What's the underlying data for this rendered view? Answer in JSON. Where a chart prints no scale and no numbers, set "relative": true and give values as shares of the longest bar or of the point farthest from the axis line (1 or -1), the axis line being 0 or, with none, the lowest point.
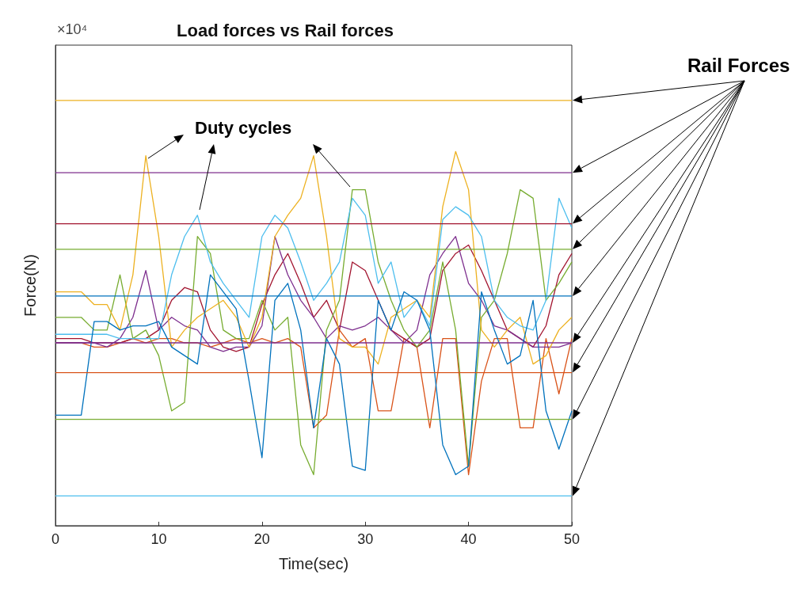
{
  "chart_data": {
    "type": "line",
    "title": "Load forces vs Rail forces",
    "xlabel": "Time(sec)",
    "ylabel": "Force(N)",
    "relative": true,
    "xlim": [
      0,
      50
    ],
    "xticks": [
      0,
      10,
      20,
      30,
      40,
      50
    ],
    "grid": false,
    "marker": "none",
    "annotations": [
      "×10⁴",
      "Rail Forces",
      "Duty cycles"
    ],
    "x": [
      0,
      1.25,
      2.5,
      3.75,
      5,
      6.25,
      7.5,
      8.75,
      10,
      11.25,
      12.5,
      13.75,
      15,
      16.25,
      17.5,
      18.75,
      20,
      21.25,
      22.5,
      23.75,
      25,
      26.25,
      27.5,
      28.75,
      30,
      31.25,
      32.5,
      33.75,
      35,
      36.25,
      37.5,
      38.75,
      40,
      41.25,
      42.5,
      43.75,
      45,
      46.25,
      47.5,
      48.75,
      50
    ],
    "series": [
      {
        "color": "#d95319",
        "values": [
          0.43,
          0.43,
          0.43,
          0.42,
          0.42,
          0.43,
          0.44,
          0.43,
          0.44,
          0.44,
          0.43,
          0.43,
          0.42,
          0.43,
          0.44,
          0.43,
          0.44,
          0.43,
          0.44,
          0.42,
          0.23,
          0.26,
          0.46,
          0.42,
          0.44,
          0.27,
          0.27,
          0.44,
          0.42,
          0.23,
          0.44,
          0.44,
          0.12,
          0.34,
          0.44,
          0.44,
          0.23,
          0.23,
          0.44,
          0.31,
          0.44
        ]
      },
      {
        "color": "#a2142f",
        "values": [
          0.44,
          0.44,
          0.44,
          0.43,
          0.43,
          0.43,
          0.44,
          0.44,
          0.46,
          0.53,
          0.56,
          0.55,
          0.46,
          0.42,
          0.41,
          0.42,
          0.52,
          0.59,
          0.64,
          0.57,
          0.49,
          0.53,
          0.46,
          0.62,
          0.6,
          0.53,
          0.46,
          0.44,
          0.42,
          0.44,
          0.6,
          0.64,
          0.66,
          0.6,
          0.53,
          0.46,
          0.44,
          0.42,
          0.47,
          0.59,
          0.64
        ]
      },
      {
        "color": "#7e2f8e",
        "values": [
          0.43,
          0.43,
          0.43,
          0.43,
          0.42,
          0.44,
          0.49,
          0.6,
          0.46,
          0.49,
          0.47,
          0.46,
          0.42,
          0.41,
          0.42,
          0.42,
          0.47,
          0.68,
          0.59,
          0.53,
          0.49,
          0.44,
          0.47,
          0.46,
          0.47,
          0.49,
          0.46,
          0.43,
          0.46,
          0.59,
          0.64,
          0.68,
          0.57,
          0.53,
          0.47,
          0.46,
          0.44,
          0.42,
          0.42,
          0.42,
          0.43
        ]
      },
      {
        "color": "#77ac30",
        "values": [
          0.49,
          0.49,
          0.49,
          0.46,
          0.46,
          0.59,
          0.44,
          0.46,
          0.4,
          0.27,
          0.29,
          0.68,
          0.64,
          0.46,
          0.44,
          0.44,
          0.53,
          0.46,
          0.49,
          0.19,
          0.12,
          0.46,
          0.53,
          0.79,
          0.79,
          0.62,
          0.53,
          0.46,
          0.42,
          0.46,
          0.62,
          0.46,
          0.14,
          0.49,
          0.53,
          0.64,
          0.79,
          0.77,
          0.53,
          0.57,
          0.62
        ]
      },
      {
        "color": "#edb120",
        "values": [
          0.55,
          0.55,
          0.55,
          0.52,
          0.52,
          0.46,
          0.59,
          0.87,
          0.68,
          0.42,
          0.46,
          0.49,
          0.51,
          0.53,
          0.49,
          0.42,
          0.49,
          0.68,
          0.73,
          0.77,
          0.87,
          0.68,
          0.44,
          0.42,
          0.42,
          0.38,
          0.49,
          0.51,
          0.53,
          0.49,
          0.75,
          0.88,
          0.79,
          0.46,
          0.42,
          0.46,
          0.49,
          0.38,
          0.4,
          0.46,
          0.49
        ]
      },
      {
        "color": "#4dbeee",
        "values": [
          0.45,
          0.45,
          0.45,
          0.45,
          0.45,
          0.44,
          0.44,
          0.44,
          0.44,
          0.59,
          0.68,
          0.73,
          0.62,
          0.57,
          0.53,
          0.49,
          0.68,
          0.73,
          0.7,
          0.62,
          0.53,
          0.57,
          0.62,
          0.77,
          0.73,
          0.57,
          0.62,
          0.49,
          0.53,
          0.47,
          0.72,
          0.75,
          0.73,
          0.68,
          0.53,
          0.49,
          0.47,
          0.46,
          0.53,
          0.77,
          0.7
        ]
      },
      {
        "color": "#0072bd",
        "values": [
          0.26,
          0.26,
          0.26,
          0.48,
          0.48,
          0.46,
          0.47,
          0.47,
          0.48,
          0.42,
          0.4,
          0.38,
          0.59,
          0.55,
          0.51,
          0.34,
          0.16,
          0.53,
          0.57,
          0.46,
          0.23,
          0.44,
          0.38,
          0.14,
          0.13,
          0.53,
          0.46,
          0.55,
          0.53,
          0.46,
          0.19,
          0.12,
          0.14,
          0.55,
          0.46,
          0.38,
          0.4,
          0.53,
          0.27,
          0.18,
          0.27
        ]
      },
      {
        "color": "#edb120",
        "values": [
          1.0,
          1.0,
          1.0,
          1.0,
          1.0,
          1.0,
          1.0,
          1.0,
          1.0,
          1.0,
          1.0,
          1.0,
          1.0,
          1.0,
          1.0,
          1.0,
          1.0,
          1.0,
          1.0,
          1.0,
          1.0,
          1.0,
          1.0,
          1.0,
          1.0,
          1.0,
          1.0,
          1.0,
          1.0,
          1.0,
          1.0,
          1.0,
          1.0,
          1.0,
          1.0,
          1.0,
          1.0,
          1.0,
          1.0,
          1.0,
          1.0
        ]
      },
      {
        "color": "#7e2f8e",
        "values": [
          0.83,
          0.83,
          0.83,
          0.83,
          0.83,
          0.83,
          0.83,
          0.83,
          0.83,
          0.83,
          0.83,
          0.83,
          0.83,
          0.83,
          0.83,
          0.83,
          0.83,
          0.83,
          0.83,
          0.83,
          0.83,
          0.83,
          0.83,
          0.83,
          0.83,
          0.83,
          0.83,
          0.83,
          0.83,
          0.83,
          0.83,
          0.83,
          0.83,
          0.83,
          0.83,
          0.83,
          0.83,
          0.83,
          0.83,
          0.83,
          0.83
        ]
      },
      {
        "color": "#a2142f",
        "values": [
          0.71,
          0.71,
          0.71,
          0.71,
          0.71,
          0.71,
          0.71,
          0.71,
          0.71,
          0.71,
          0.71,
          0.71,
          0.71,
          0.71,
          0.71,
          0.71,
          0.71,
          0.71,
          0.71,
          0.71,
          0.71,
          0.71,
          0.71,
          0.71,
          0.71,
          0.71,
          0.71,
          0.71,
          0.71,
          0.71,
          0.71,
          0.71,
          0.71,
          0.71,
          0.71,
          0.71,
          0.71,
          0.71,
          0.71,
          0.71,
          0.71
        ]
      },
      {
        "color": "#77ac30",
        "values": [
          0.65,
          0.65,
          0.65,
          0.65,
          0.65,
          0.65,
          0.65,
          0.65,
          0.65,
          0.65,
          0.65,
          0.65,
          0.65,
          0.65,
          0.65,
          0.65,
          0.65,
          0.65,
          0.65,
          0.65,
          0.65,
          0.65,
          0.65,
          0.65,
          0.65,
          0.65,
          0.65,
          0.65,
          0.65,
          0.65,
          0.65,
          0.65,
          0.65,
          0.65,
          0.65,
          0.65,
          0.65,
          0.65,
          0.65,
          0.65,
          0.65
        ]
      },
      {
        "color": "#0072bd",
        "values": [
          0.54,
          0.54,
          0.54,
          0.54,
          0.54,
          0.54,
          0.54,
          0.54,
          0.54,
          0.54,
          0.54,
          0.54,
          0.54,
          0.54,
          0.54,
          0.54,
          0.54,
          0.54,
          0.54,
          0.54,
          0.54,
          0.54,
          0.54,
          0.54,
          0.54,
          0.54,
          0.54,
          0.54,
          0.54,
          0.54,
          0.54,
          0.54,
          0.54,
          0.54,
          0.54,
          0.54,
          0.54,
          0.54,
          0.54,
          0.54,
          0.54
        ]
      },
      {
        "color": "#7e2f8e",
        "values": [
          0.43,
          0.43,
          0.43,
          0.43,
          0.43,
          0.43,
          0.43,
          0.43,
          0.43,
          0.43,
          0.43,
          0.43,
          0.43,
          0.43,
          0.43,
          0.43,
          0.43,
          0.43,
          0.43,
          0.43,
          0.43,
          0.43,
          0.43,
          0.43,
          0.43,
          0.43,
          0.43,
          0.43,
          0.43,
          0.43,
          0.43,
          0.43,
          0.43,
          0.43,
          0.43,
          0.43,
          0.43,
          0.43,
          0.43,
          0.43,
          0.43
        ]
      },
      {
        "color": "#d95319",
        "values": [
          0.36,
          0.36,
          0.36,
          0.36,
          0.36,
          0.36,
          0.36,
          0.36,
          0.36,
          0.36,
          0.36,
          0.36,
          0.36,
          0.36,
          0.36,
          0.36,
          0.36,
          0.36,
          0.36,
          0.36,
          0.36,
          0.36,
          0.36,
          0.36,
          0.36,
          0.36,
          0.36,
          0.36,
          0.36,
          0.36,
          0.36,
          0.36,
          0.36,
          0.36,
          0.36,
          0.36,
          0.36,
          0.36,
          0.36,
          0.36,
          0.36
        ]
      },
      {
        "color": "#77ac30",
        "values": [
          0.25,
          0.25,
          0.25,
          0.25,
          0.25,
          0.25,
          0.25,
          0.25,
          0.25,
          0.25,
          0.25,
          0.25,
          0.25,
          0.25,
          0.25,
          0.25,
          0.25,
          0.25,
          0.25,
          0.25,
          0.25,
          0.25,
          0.25,
          0.25,
          0.25,
          0.25,
          0.25,
          0.25,
          0.25,
          0.25,
          0.25,
          0.25,
          0.25,
          0.25,
          0.25,
          0.25,
          0.25,
          0.25,
          0.25,
          0.25,
          0.25
        ]
      },
      {
        "color": "#4dbeee",
        "values": [
          0.07,
          0.07,
          0.07,
          0.07,
          0.07,
          0.07,
          0.07,
          0.07,
          0.07,
          0.07,
          0.07,
          0.07,
          0.07,
          0.07,
          0.07,
          0.07,
          0.07,
          0.07,
          0.07,
          0.07,
          0.07,
          0.07,
          0.07,
          0.07,
          0.07,
          0.07,
          0.07,
          0.07,
          0.07,
          0.07,
          0.07,
          0.07,
          0.07,
          0.07,
          0.07,
          0.07,
          0.07,
          0.07,
          0.07,
          0.07,
          0.07
        ]
      }
    ]
  }
}
